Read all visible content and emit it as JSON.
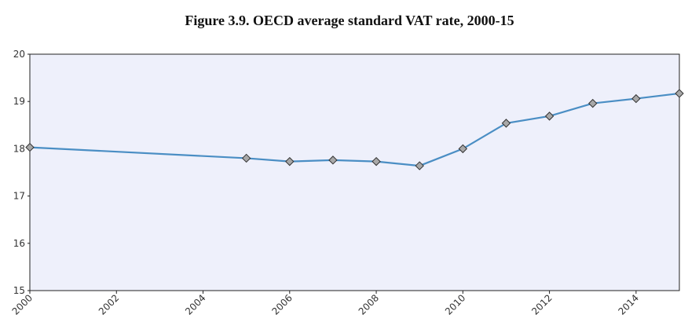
{
  "chart_data": {
    "type": "line",
    "title": "Figure 3.9. OECD average standard VAT rate, 2000-15",
    "x": [
      2000,
      2005,
      2006,
      2007,
      2008,
      2009,
      2010,
      2011,
      2012,
      2013,
      2014,
      2015
    ],
    "series": [
      {
        "color": "#4a8ec4",
        "values": [
          18.03,
          17.8,
          17.73,
          17.76,
          17.73,
          17.64,
          18.0,
          18.54,
          18.69,
          18.96,
          19.06,
          19.17
        ]
      }
    ],
    "xlim": [
      2000,
      2015
    ],
    "xticks": [
      2000,
      2002,
      2004,
      2006,
      2008,
      2010,
      2012,
      2014
    ],
    "ylim": [
      15,
      20
    ],
    "yticks": [
      15,
      16,
      17,
      18,
      19,
      20
    ],
    "background": "#eef0fb",
    "marker_color": "#a8a8a8"
  }
}
